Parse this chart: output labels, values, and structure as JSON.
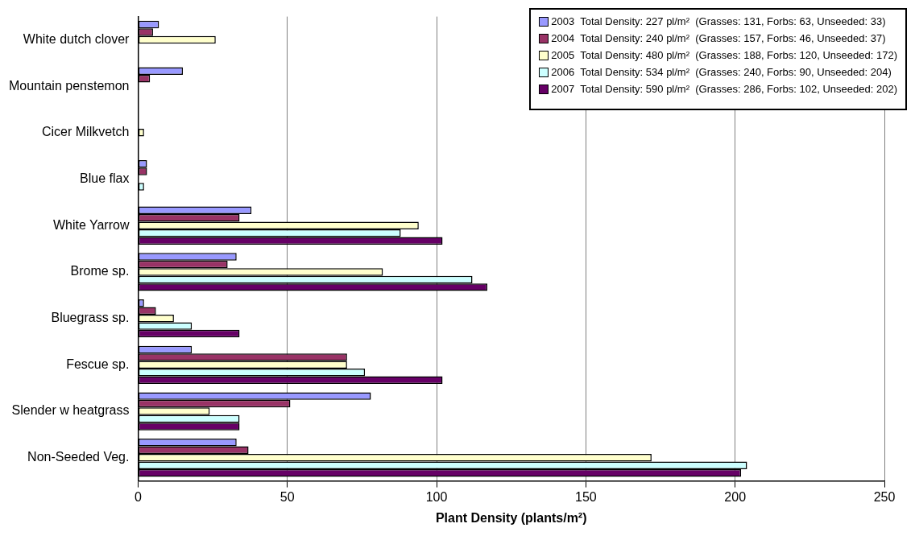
{
  "chart_data": {
    "type": "bar",
    "orientation": "horizontal",
    "xlabel": "Plant Density (plants/m²)",
    "categories": [
      "White dutch clover",
      "Mountain penstemon",
      "Cicer Milkvetch",
      "Blue flax",
      "White Yarrow",
      "Brome sp.",
      "Bluegrass sp.",
      "Fescue sp.",
      "Slender w heatgrass",
      "Non-Seeded Veg."
    ],
    "series": [
      {
        "name": "2003  Total Density: 227 pl/m²  (Grasses: 131, Forbs: 63, Unseeded: 33)",
        "color": "#9999ff",
        "values": [
          7,
          15,
          null,
          3,
          38,
          33,
          2,
          18,
          78,
          33
        ]
      },
      {
        "name": "2004  Total Density: 240 pl/m²  (Grasses: 157, Forbs: 46, Unseeded: 37)",
        "color": "#993366",
        "values": [
          5,
          4,
          null,
          3,
          34,
          30,
          6,
          70,
          51,
          37
        ]
      },
      {
        "name": "2005  Total Density: 480 pl/m²  (Grasses: 188, Forbs: 120, Unseeded: 172)",
        "color": "#ffffcc",
        "values": [
          26,
          null,
          2,
          null,
          94,
          82,
          12,
          70,
          24,
          172
        ]
      },
      {
        "name": "2006  Total Density: 534 pl/m²  (Grasses: 240, Forbs: 90, Unseeded: 204)",
        "color": "#ccffff",
        "values": [
          null,
          null,
          null,
          2,
          88,
          112,
          18,
          76,
          34,
          204
        ]
      },
      {
        "name": "2007  Total Density: 590 pl/m²  (Grasses: 286, Forbs: 102, Unseeded: 202)",
        "color": "#660066",
        "values": [
          null,
          null,
          null,
          null,
          102,
          117,
          34,
          102,
          34,
          202
        ]
      }
    ],
    "xlim": [
      0,
      250
    ],
    "xticks": [
      0,
      50,
      100,
      150,
      200,
      250
    ],
    "grid": "x",
    "legend": "top right"
  }
}
